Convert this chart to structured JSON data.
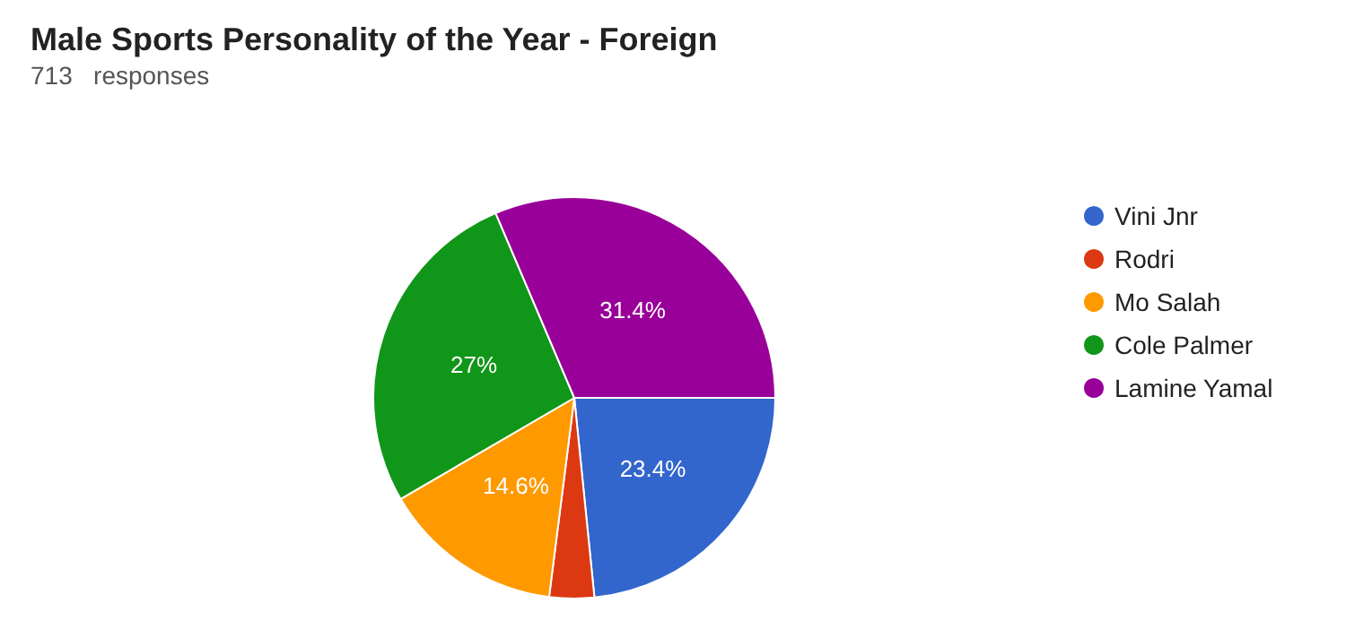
{
  "chart_data": {
    "type": "pie",
    "title": "Male Sports Personality of the Year - Foreign",
    "subtitle": "713   responses",
    "categories": [
      "Vini Jnr",
      "Rodri",
      "Mo Salah",
      "Cole Palmer",
      "Lamine Yamal"
    ],
    "values": [
      23.4,
      3.6,
      14.6,
      27,
      31.4
    ],
    "colors": [
      "#3366cc",
      "#dc3912",
      "#ff9900",
      "#109618",
      "#990099"
    ],
    "value_labels": [
      "23.4%",
      null,
      "14.6%",
      "27%",
      "31.4%"
    ],
    "legend": "right"
  }
}
